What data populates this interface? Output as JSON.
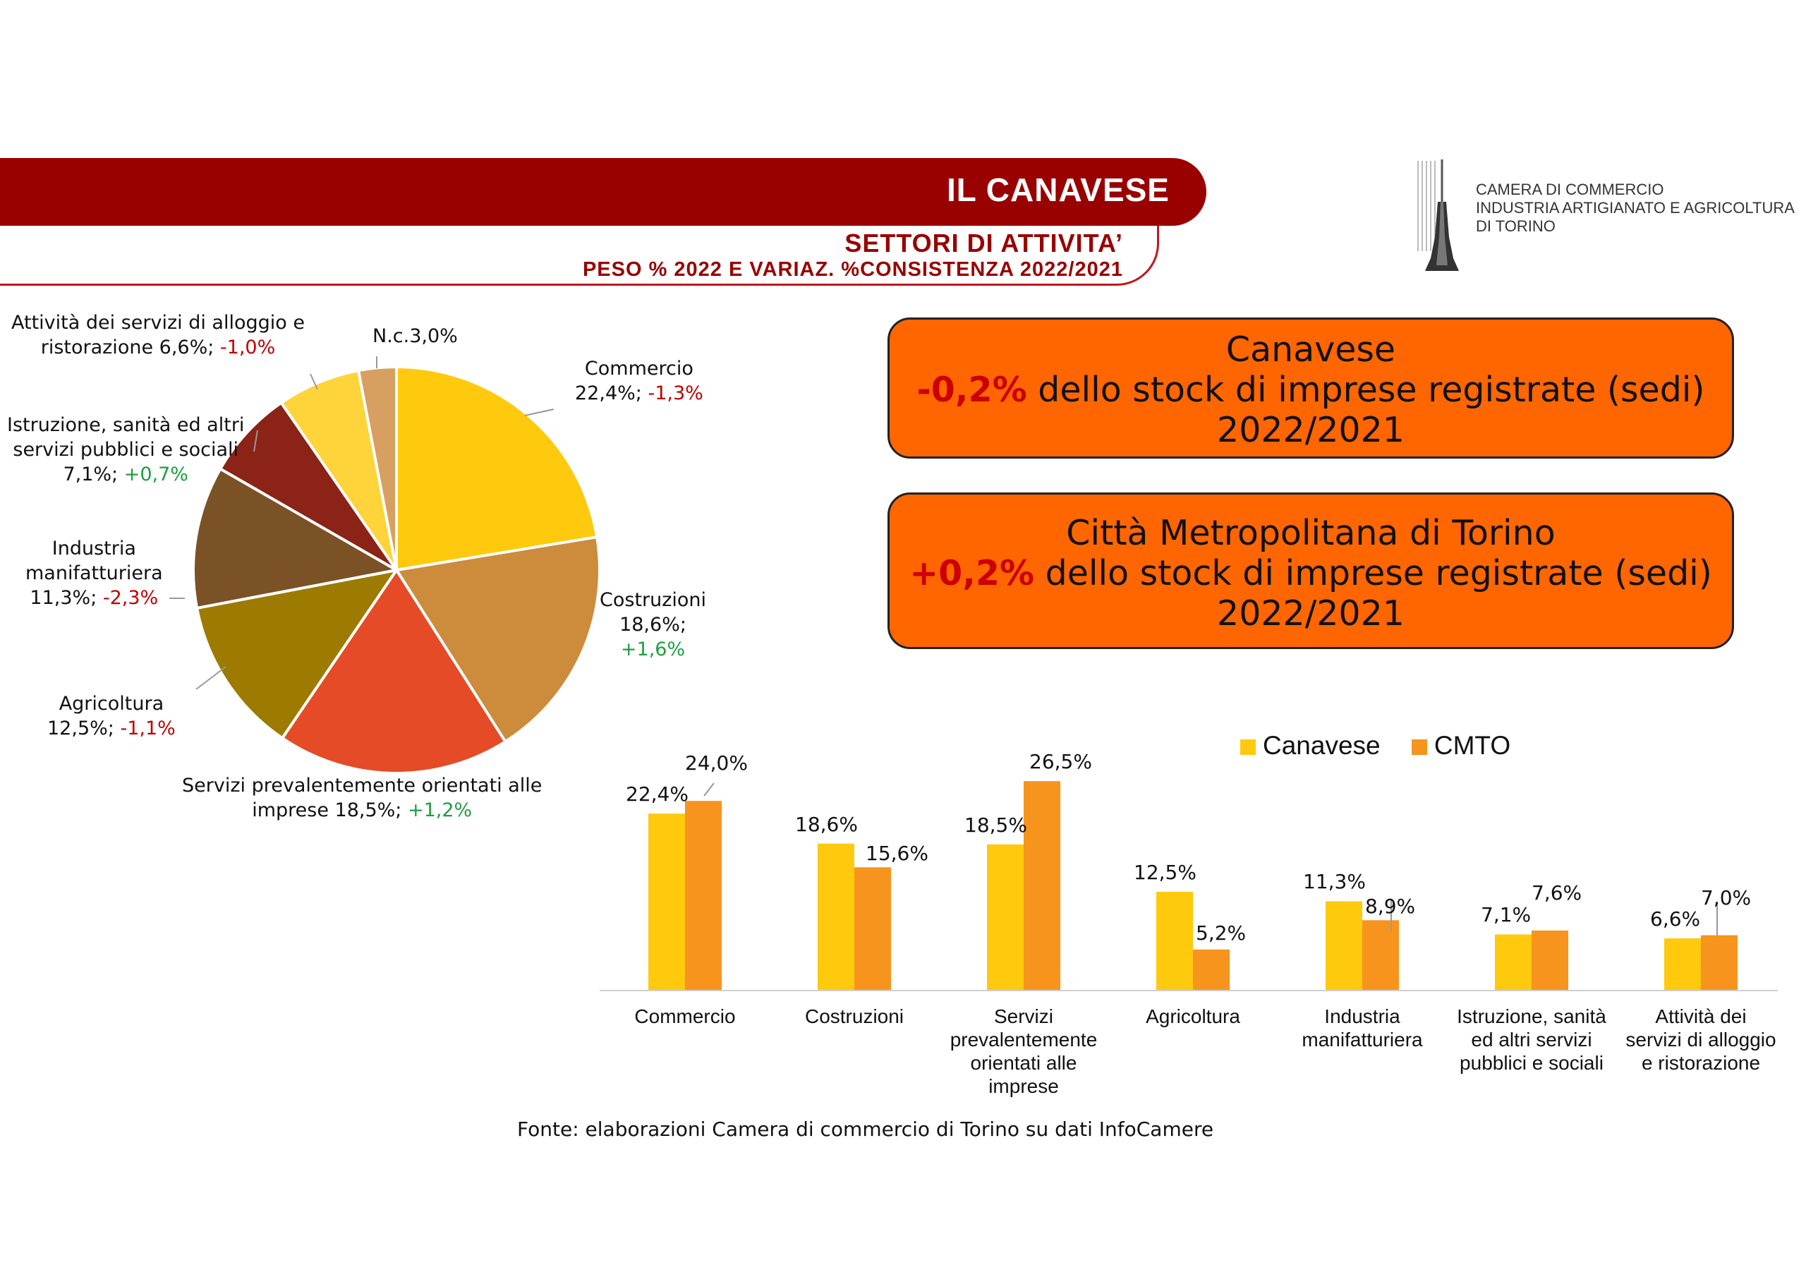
{
  "header": {
    "title": "IL CANAVESE",
    "subtitle": "SETTORI DI ATTIVITA’",
    "subtitle2": "PESO % 2022 E VARIAZ. %CONSISTENZA 2022/2021"
  },
  "logo": {
    "line1": "CAMERA DI COMMERCIO",
    "line2": "INDUSTRIA ARTIGIANATO E AGRICOLTURA",
    "line3": "DI TORINO"
  },
  "callouts": [
    {
      "line1": "Canavese",
      "highlight": "-0,2%",
      "line2_rest": " dello stock di imprese registrate (sedi)",
      "line3": "2022/2021"
    },
    {
      "line1": "Città Metropolitana di Torino",
      "highlight": "+0,2%",
      "line2_rest": " dello stock di imprese registrate (sedi)",
      "line3": "2022/2021"
    }
  ],
  "pie_labels": {
    "commercio": {
      "l1": "Commercio",
      "l2": "22,4%; ",
      "var": "-1,3%"
    },
    "costruzioni": {
      "l1": "Costruzioni",
      "l2": "18,6%;",
      "var": "+1,6%"
    },
    "servizi_imprese": {
      "l1": "Servizi prevalentemente orientati alle",
      "l2": "imprese 18,5%; ",
      "var": "+1,2%"
    },
    "agricoltura": {
      "l1": "Agricoltura",
      "l2": "12,5%; ",
      "var": "-1,1%"
    },
    "industria": {
      "l1": "Industria",
      "l2": "manifatturiera",
      "l3": "11,3%; ",
      "var": "-2,3%"
    },
    "istruzione": {
      "l1": "Istruzione, sanità ed altri",
      "l2": "servizi pubblici e sociali",
      "l3": "7,1%; ",
      "var": "+0,7%"
    },
    "alloggio": {
      "l1": "Attività dei servizi di alloggio e",
      "l2": "ristorazione 6,6%; ",
      "var": "-1,0%"
    },
    "nc": {
      "l1": "N.c.3,0%"
    }
  },
  "legend": {
    "canavese": "Canavese",
    "cmto": "CMTO"
  },
  "source": "Fonte: elaborazioni Camera di commercio di Torino su dati InfoCamere",
  "chart_data": [
    {
      "type": "pie",
      "slices": [
        {
          "name": "Commercio",
          "value": 22.4,
          "variation": -1.3,
          "color": "#ffc90e"
        },
        {
          "name": "Costruzioni",
          "value": 18.6,
          "variation": 1.6,
          "color": "#cd8b3c"
        },
        {
          "name": "Servizi prevalentemente orientati alle imprese",
          "value": 18.5,
          "variation": 1.2,
          "color": "#e44b26"
        },
        {
          "name": "Agricoltura",
          "value": 12.5,
          "variation": -1.1,
          "color": "#9c7b00"
        },
        {
          "name": "Industria manifatturiera",
          "value": 11.3,
          "variation": -2.3,
          "color": "#7b5126"
        },
        {
          "name": "Istruzione, sanità ed altri servizi pubblici e sociali",
          "value": 7.1,
          "variation": 0.7,
          "color": "#8b2316"
        },
        {
          "name": "Attività dei servizi di alloggio e ristorazione",
          "value": 6.6,
          "variation": -1.0,
          "color": "#ffd43a"
        },
        {
          "name": "N.c.",
          "value": 3.0,
          "color": "#d8a060"
        }
      ]
    },
    {
      "type": "bar",
      "categories": [
        [
          "Commercio"
        ],
        [
          "Costruzioni"
        ],
        [
          "Servizi",
          "prevalentemente",
          "orientati alle",
          "imprese"
        ],
        [
          "Agricoltura"
        ],
        [
          "Industria",
          "manifatturiera"
        ],
        [
          "Istruzione, sanità",
          "ed altri servizi",
          "pubblici e sociali"
        ],
        [
          "Attività dei",
          "servizi di alloggio",
          "e ristorazione"
        ]
      ],
      "series": [
        {
          "name": "Canavese",
          "color": "#ffc90e",
          "values": [
            22.4,
            18.6,
            18.5,
            12.5,
            11.3,
            7.1,
            6.6
          ],
          "labels": [
            "22,4%",
            "18,6%",
            "18,5%",
            "12,5%",
            "11,3%",
            "7,1%",
            "6,6%"
          ]
        },
        {
          "name": "CMTO",
          "color": "#f7941d",
          "values": [
            24.0,
            15.6,
            26.5,
            5.2,
            8.9,
            7.6,
            7.0
          ],
          "labels": [
            "24,0%",
            "15,6%",
            "26,5%",
            "5,2%",
            "8,9%",
            "7,6%",
            "7,0%"
          ]
        }
      ],
      "ylim": [
        0,
        30
      ]
    }
  ]
}
